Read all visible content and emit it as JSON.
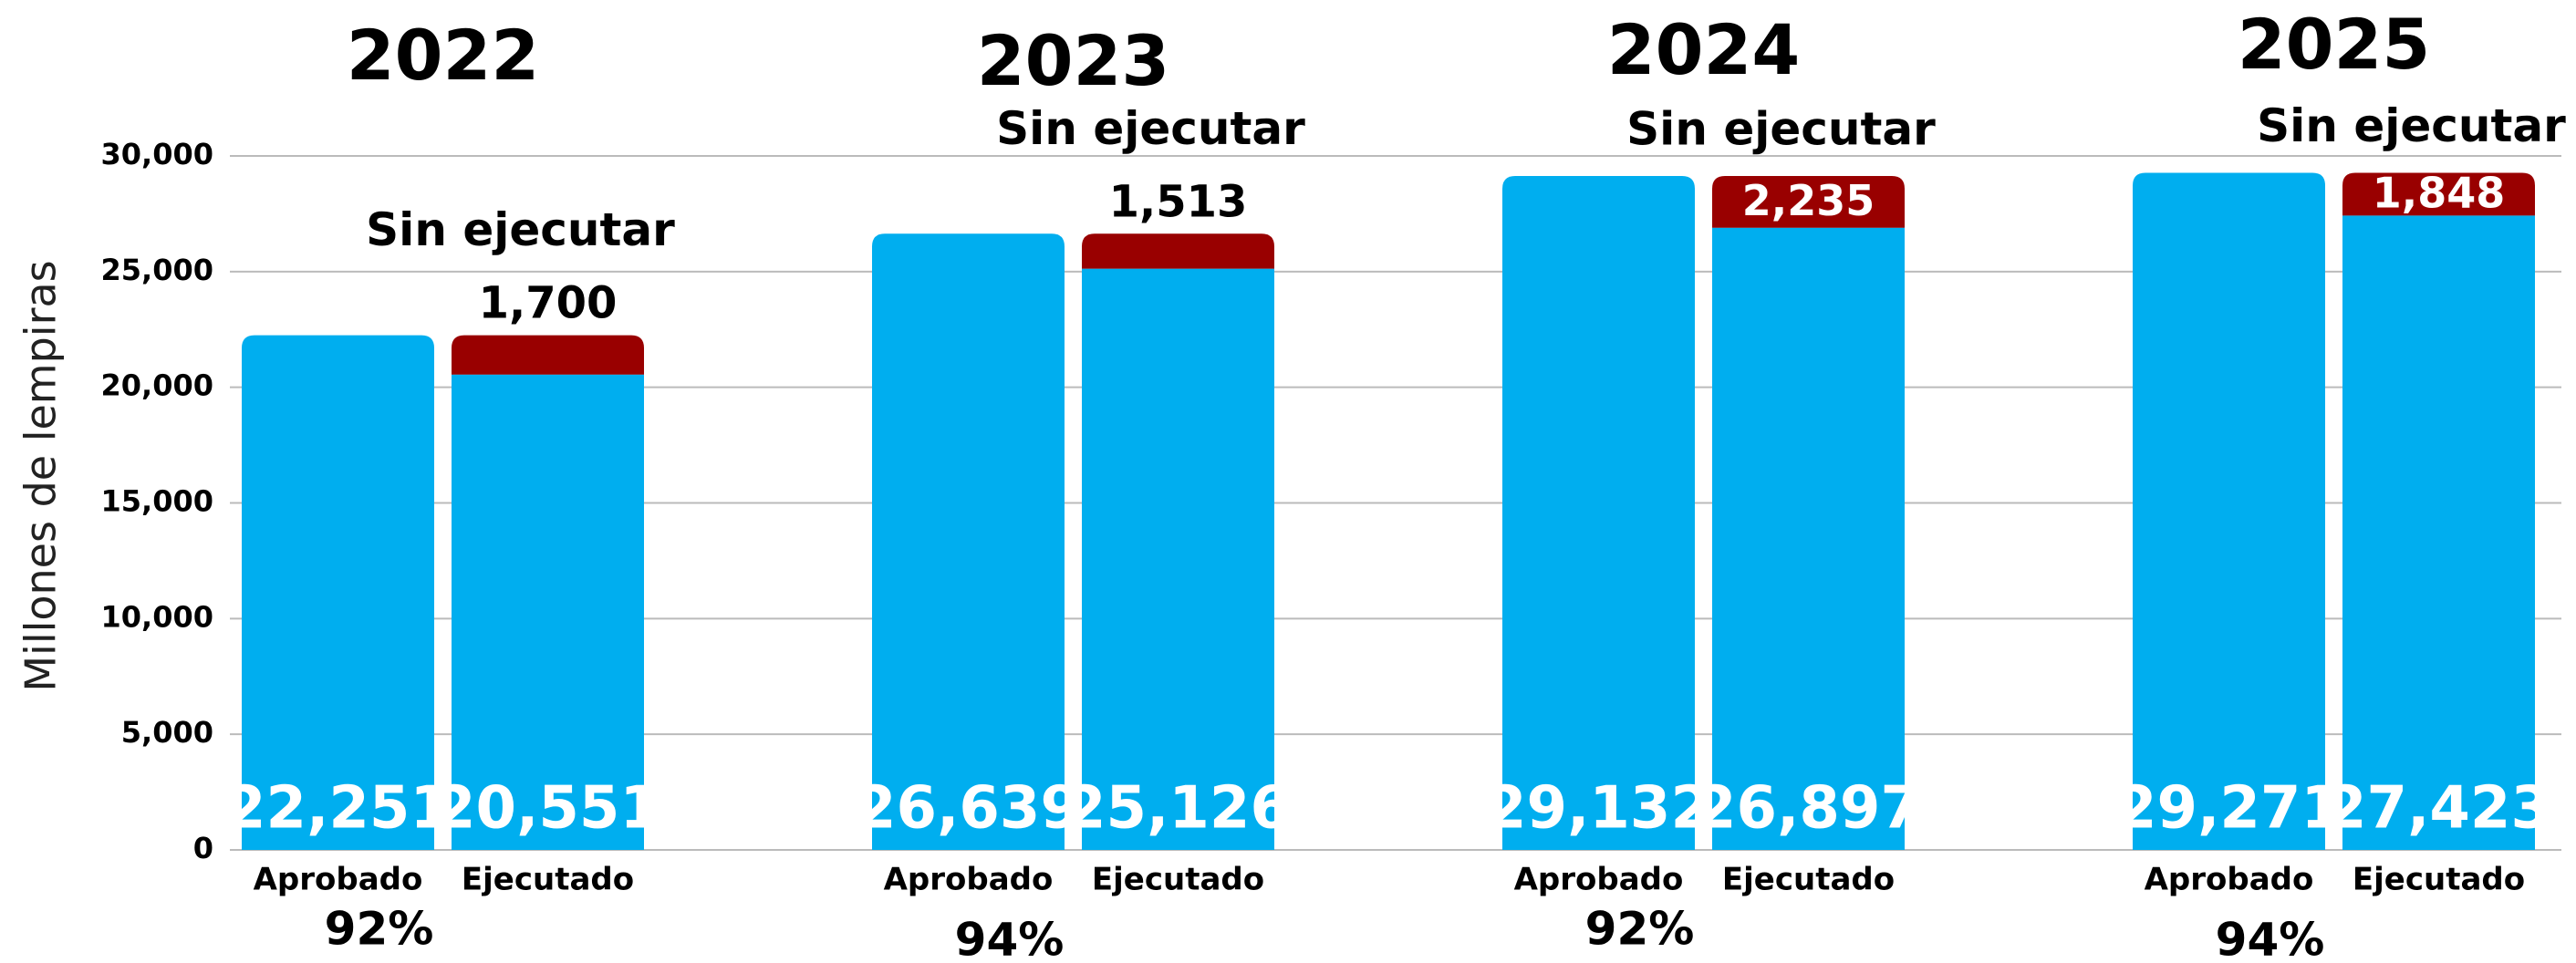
{
  "chart_data": {
    "type": "bar",
    "y_label": "Millones de lempiras",
    "categories": [
      "2022",
      "2023",
      "2024",
      "2025"
    ],
    "ylim": [
      0,
      30000
    ],
    "yticks": [
      0,
      {
        "value": 5000,
        "label": "5,000"
      },
      {
        "value": 10000,
        "label": "10,000"
      },
      {
        "value": 15000,
        "label": "15,000"
      },
      {
        "value": 20000,
        "label": "20,000"
      },
      {
        "value": 25000,
        "label": "25,000"
      },
      {
        "value": 30000,
        "label": "30,000"
      }
    ],
    "grid": true,
    "series": [
      {
        "name": "Aprobado",
        "color": "#00aeef",
        "values": [
          22251,
          26639,
          29132,
          29271
        ],
        "value_labels": [
          "22,251",
          "26,639",
          "29,132",
          "29,271"
        ]
      },
      {
        "name": "Ejecutado",
        "color": "#00aeef",
        "values": [
          20551,
          25126,
          26897,
          27423
        ],
        "value_labels": [
          "20,551",
          "25,126",
          "26,897",
          "27,423"
        ]
      },
      {
        "name": "Sin ejecutar",
        "color": "#990000",
        "stacked_on": "Ejecutado",
        "values": [
          1700,
          1513,
          2235,
          1848
        ],
        "value_labels": [
          "1,700",
          "1,513",
          "2,235",
          "1,848"
        ]
      }
    ],
    "execution_rate": {
      "values": [
        92,
        94,
        92,
        94
      ],
      "value_labels": [
        "92%",
        "94%",
        "92%",
        "94%"
      ]
    }
  }
}
